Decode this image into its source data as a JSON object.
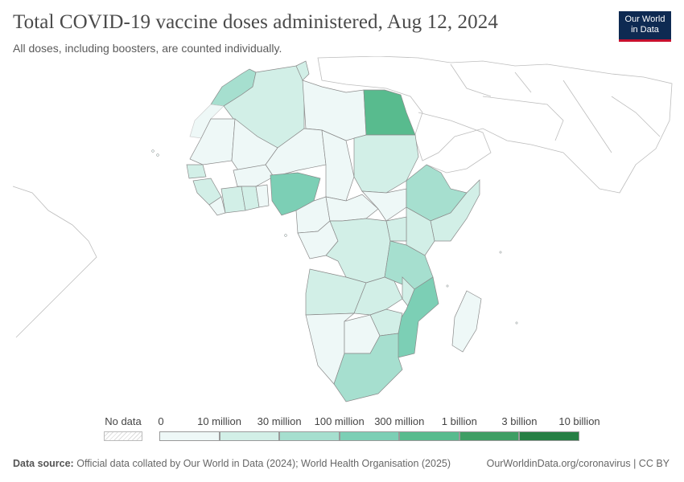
{
  "title": "Total COVID-19 vaccine doses administered, Aug 12, 2024",
  "subtitle": "All doses, including boosters, are counted individually.",
  "logo": {
    "line1": "Our World",
    "line2": "in Data"
  },
  "legend": {
    "no_data_label": "No data",
    "ticks": [
      "0",
      "10 million",
      "30 million",
      "100 million",
      "300 million",
      "1 billion",
      "3 billion",
      "10 billion"
    ],
    "colors": [
      "#eef8f7",
      "#d2efe7",
      "#a6dfcf",
      "#7ccfb5",
      "#58bb8e",
      "#3f9e64",
      "#267f44",
      "#0b5b26"
    ]
  },
  "footer": {
    "source_label": "Data source:",
    "source_text": "Official data collated by Our World in Data (2024); World Health Organisation (2025)",
    "credit": "OurWorldinData.org/coronavirus | CC BY"
  }
}
